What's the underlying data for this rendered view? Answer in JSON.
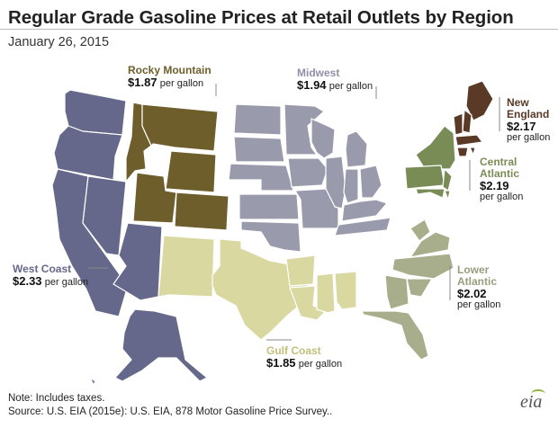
{
  "title": "Regular Grade Gasoline Prices at Retail Outlets by Region",
  "subtitle": "January 26, 2015",
  "regions": {
    "west_coast": {
      "name": "West Coast",
      "price": "$2.33",
      "unit": "per gallon",
      "color": "#65688a"
    },
    "rocky_mountain": {
      "name": "Rocky Mountain",
      "price": "$1.87",
      "unit": "per gallon",
      "color": "#6e5e2c"
    },
    "midwest": {
      "name": "Midwest",
      "price": "$1.94",
      "unit": "per gallon",
      "color": "#9a9aad"
    },
    "new_england": {
      "name_line1": "New",
      "name_line2": "England",
      "price": "$2.17",
      "unit": "per gallon",
      "color": "#5a3a26"
    },
    "central_atlantic": {
      "name_line1": "Central",
      "name_line2": "Atlantic",
      "price": "$2.19",
      "unit": "per gallon",
      "color": "#7a8c56"
    },
    "lower_atlantic": {
      "name_line1": "Lower",
      "name_line2": "Atlantic",
      "price": "$2.02",
      "unit": "per gallon",
      "color": "#a8ae8c"
    },
    "gulf_coast": {
      "name": "Gulf Coast",
      "price": "$1.85",
      "unit": "per gallon",
      "color": "#d9d8a0"
    }
  },
  "note": "Note: Includes taxes.",
  "source": "Source: U.S. EIA (2015e): U.S. EIA, 878 Motor Gasoline Price Survey..",
  "logo": "eia"
}
